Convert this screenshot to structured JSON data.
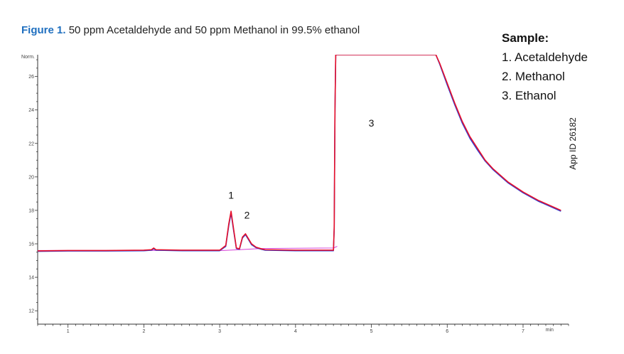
{
  "title": {
    "figure_label": "Figure 1.",
    "text": "50 ppm Acetaldehyde and 50 ppm Methanol in 99.5% ethanol"
  },
  "legend": {
    "header": "Sample:",
    "items": [
      "1. Acetaldehyde",
      "2. Methanol",
      "3. Ethanol"
    ]
  },
  "app_id": "App ID 26182",
  "colors": {
    "trace_red": "#e8102a",
    "trace_blue": "#2a3fd6",
    "baseline": "#d63fd6",
    "axis": "#333333",
    "figure_label": "#1f6fbf"
  },
  "chart_data": {
    "type": "line",
    "ylabel": "Norm.",
    "xlabel": "min",
    "xlim": [
      0.6,
      7.6
    ],
    "ylim": [
      11.2,
      27.3
    ],
    "x_ticks": [
      1,
      2,
      3,
      4,
      5,
      6,
      7
    ],
    "y_ticks": [
      12,
      14,
      16,
      18,
      20,
      22,
      24,
      26
    ],
    "peak_labels": [
      {
        "label": "1",
        "x": 3.15,
        "y": 18.7
      },
      {
        "label": "2",
        "x": 3.36,
        "y": 17.5
      },
      {
        "label": "3",
        "x": 5.0,
        "y": 23.0
      }
    ],
    "series": [
      {
        "color": "red",
        "x": [
          0.6,
          1.0,
          1.5,
          2.0,
          2.1,
          2.13,
          2.16,
          2.5,
          3.0,
          3.08,
          3.12,
          3.15,
          3.18,
          3.22,
          3.26,
          3.3,
          3.34,
          3.38,
          3.42,
          3.48,
          3.55,
          3.6,
          4.0,
          4.5,
          4.51,
          4.52,
          4.53,
          5.85,
          5.9,
          6.0,
          6.1,
          6.2,
          6.3,
          6.4,
          6.5,
          6.6,
          6.8,
          7.0,
          7.2,
          7.4,
          7.5
        ],
        "y": [
          15.58,
          15.6,
          15.6,
          15.62,
          15.65,
          15.75,
          15.65,
          15.62,
          15.62,
          15.9,
          17.2,
          17.95,
          17.0,
          15.75,
          15.7,
          16.4,
          16.6,
          16.3,
          16.0,
          15.8,
          15.7,
          15.65,
          15.62,
          15.62,
          17.0,
          24.0,
          27.3,
          27.3,
          26.8,
          25.6,
          24.4,
          23.3,
          22.4,
          21.7,
          21.0,
          20.5,
          19.7,
          19.1,
          18.6,
          18.2,
          18.0
        ]
      },
      {
        "color": "blue",
        "x": [
          0.6,
          1.0,
          1.5,
          2.0,
          2.1,
          2.13,
          2.16,
          2.5,
          3.0,
          3.08,
          3.12,
          3.15,
          3.18,
          3.22,
          3.26,
          3.3,
          3.34,
          3.38,
          3.42,
          3.48,
          3.55,
          3.6,
          4.0,
          4.5,
          4.51,
          4.52,
          4.53,
          5.85,
          5.9,
          6.0,
          6.1,
          6.2,
          6.3,
          6.4,
          6.5,
          6.6,
          6.8,
          7.0,
          7.2,
          7.4,
          7.5
        ],
        "y": [
          15.55,
          15.57,
          15.57,
          15.59,
          15.62,
          15.7,
          15.62,
          15.59,
          15.59,
          15.85,
          17.1,
          17.85,
          16.9,
          15.72,
          15.67,
          16.35,
          16.55,
          16.25,
          15.95,
          15.77,
          15.67,
          15.62,
          15.59,
          15.59,
          16.9,
          23.9,
          27.3,
          27.3,
          26.75,
          25.5,
          24.3,
          23.2,
          22.3,
          21.6,
          20.95,
          20.45,
          19.65,
          19.05,
          18.55,
          18.15,
          17.95
        ]
      },
      {
        "color": "magenta",
        "x": [
          0.6,
          3.05,
          3.55,
          4.5,
          4.55
        ],
        "y": [
          15.6,
          15.6,
          15.72,
          15.75,
          15.85
        ]
      }
    ]
  }
}
